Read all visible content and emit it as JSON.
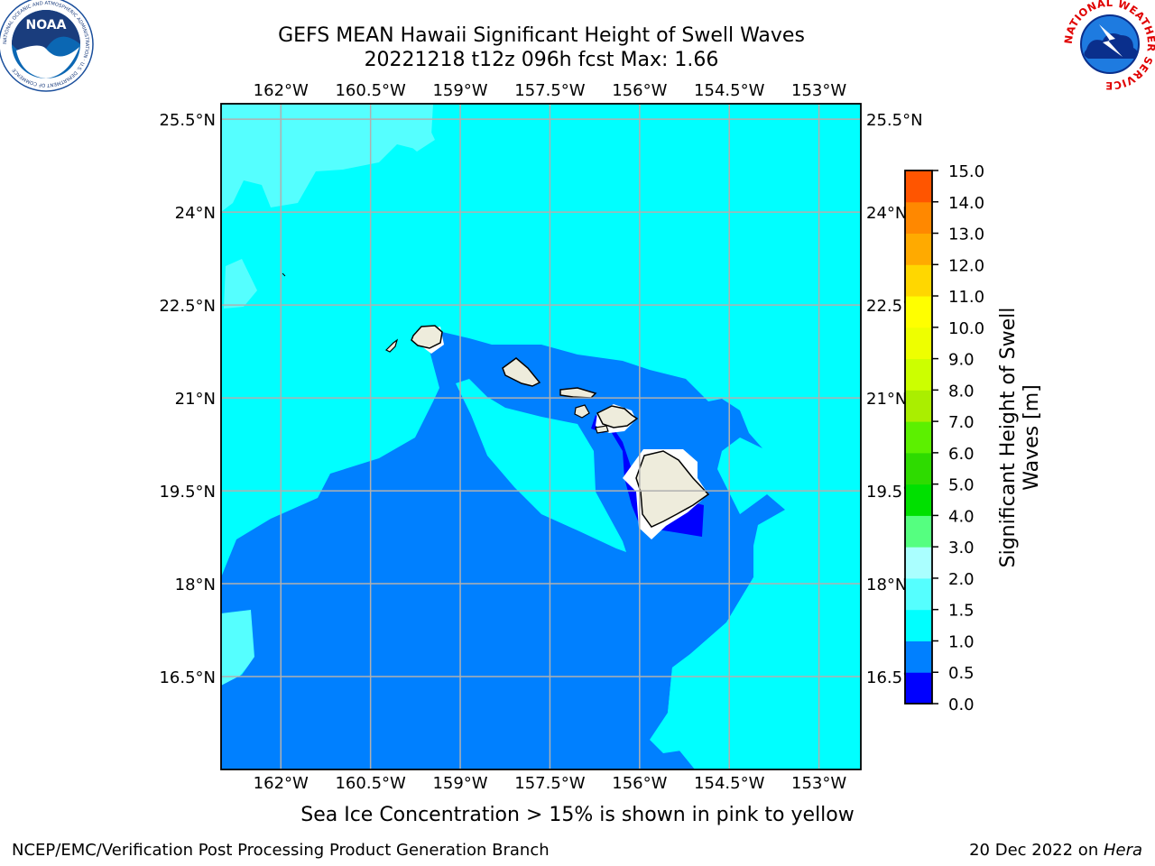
{
  "title": {
    "line1": "GEFS MEAN Hawaii Significant Height of Swell Waves",
    "line2": "20221218 t12z 096h fcst   Max: 1.66"
  },
  "map": {
    "lon_ticks": [
      "162°W",
      "160.5°W",
      "159°W",
      "157.5°W",
      "156°W",
      "154.5°W",
      "153°W"
    ],
    "lat_ticks": [
      "25.5°N",
      "24°N",
      "22.5°N",
      "21°N",
      "19.5°N",
      "18°N",
      "16.5°N"
    ],
    "lon_values": [
      -162,
      -160.5,
      -159,
      -157.5,
      -156,
      -154.5,
      -153
    ],
    "lat_values": [
      25.5,
      24,
      22.5,
      21,
      19.5,
      18,
      16.5
    ],
    "extent": {
      "lon_min": -163,
      "lon_max": -152.3,
      "lat_min": 15.0,
      "lat_max": 25.75
    },
    "colors": {
      "land": "#eeecdc",
      "band_0_0_5": "#0000ff",
      "band_0_5_1_0": "#0080ff",
      "band_1_0_1_5": "#00ffff",
      "band_1_5_2_0": "#55ffff",
      "grid": "#b0b0b0"
    }
  },
  "colorbar": {
    "label_line1": "Significant Height of Swell",
    "label_line2": "Waves [m]",
    "ticks": [
      "15.0",
      "14.0",
      "13.0",
      "12.0",
      "11.0",
      "10.0",
      "9.0",
      "8.0",
      "7.0",
      "6.0",
      "5.0",
      "4.0",
      "3.0",
      "2.0",
      "1.5",
      "1.0",
      "0.5",
      "0.0"
    ],
    "colors": [
      "#0000ff",
      "#0080ff",
      "#00ffff",
      "#55ffff",
      "#aaffff",
      "#55ff80",
      "#00e000",
      "#2edb00",
      "#5cf000",
      "#aaee00",
      "#ccff00",
      "#eeff00",
      "#ffff00",
      "#ffd700",
      "#ffaa00",
      "#ff8800",
      "#ff5500",
      "#ff2a00",
      "#ff0000"
    ]
  },
  "footer": {
    "note": "Sea Ice Concentration > 15% is shown in pink to yellow",
    "credit": "NCEP/EMC/Verification Post Processing Product Generation Branch",
    "date": "20 Dec 2022 on ",
    "host": "Hera"
  },
  "logos": {
    "noaa_text": "NOAA",
    "noaa_ring": "NATIONAL OCEANIC AND ATMOSPHERIC ADMINISTRATION · U.S. DEPARTMENT OF COMMERCE",
    "nws_ring": "NATIONAL WEATHER SERVICE"
  }
}
